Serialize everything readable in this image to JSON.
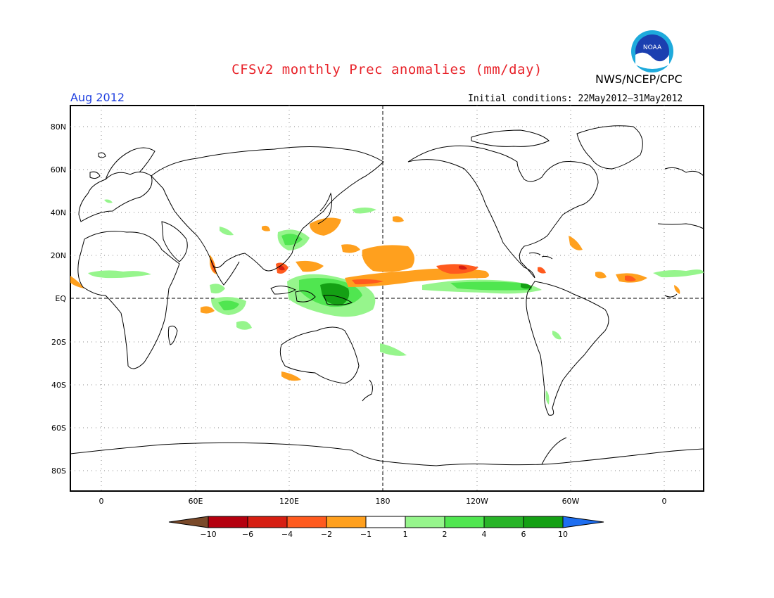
{
  "title": "CFSv2 monthly Prec anomalies (mm/day)",
  "org": "NWS/NCEP/CPC",
  "logo_text": "NOAA",
  "month": "Aug 2012",
  "initial_conditions": "Initial conditions: 22May2012–31May2012",
  "lat_labels": [
    "80N",
    "60N",
    "40N",
    "20N",
    "EQ",
    "20S",
    "40S",
    "60S",
    "80S"
  ],
  "lon_labels": [
    "0",
    "60E",
    "120E",
    "180",
    "120W",
    "60W",
    "0"
  ],
  "colorbar": {
    "labels": [
      "−10",
      "−6",
      "−4",
      "−2",
      "−1",
      "1",
      "2",
      "4",
      "6",
      "10"
    ],
    "colors": [
      "#7a4a2a",
      "#b5000f",
      "#d61e12",
      "#ff5a1e",
      "#ffa01e",
      "#ffffff",
      "#96f58c",
      "#50e650",
      "#28b428",
      "#14a014",
      "#1e6ef0"
    ]
  },
  "colors": {
    "title": "#e8232a",
    "month": "#1f3fe0",
    "wet_light": "#96f58c",
    "wet_mid": "#50e650",
    "wet_dark": "#14a014",
    "dry_light": "#ffa01e",
    "dry_mid": "#ff5a1e",
    "dry_dark": "#d61e12"
  }
}
